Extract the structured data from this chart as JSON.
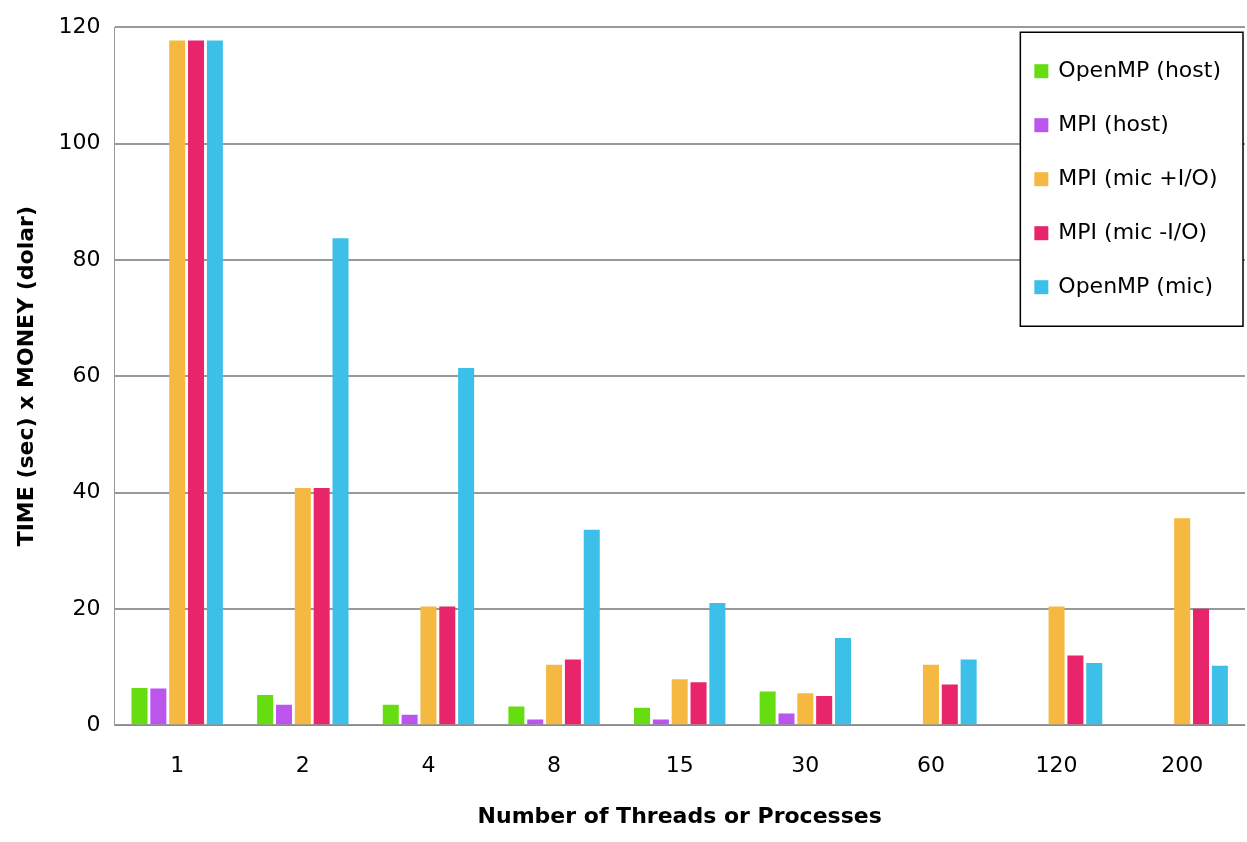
{
  "chart_data": {
    "type": "bar",
    "xlabel": "Number of Threads or Processes",
    "ylabel": "TIME (sec) x MONEY (dolar)",
    "categories": [
      "1",
      "2",
      "4",
      "8",
      "15",
      "30",
      "60",
      "120",
      "200"
    ],
    "series": [
      {
        "name": "OpenMP (host)",
        "color": "#66dd11",
        "values": [
          6.4,
          5.2,
          3.5,
          3.2,
          3,
          5.8,
          null,
          null,
          null
        ]
      },
      {
        "name": "MPI (host)",
        "color": "#bb55ee",
        "values": [
          6.3,
          3.5,
          1.8,
          1,
          1,
          2,
          null,
          null,
          null
        ]
      },
      {
        "name": "MPI (mic +I/O)",
        "color": "#f5b942",
        "values": [
          117.7,
          40.8,
          20.4,
          10.4,
          7.9,
          5.5,
          10.4,
          20.4,
          35.6
        ]
      },
      {
        "name": "MPI (mic -I/O)",
        "color": "#e8246a",
        "values": [
          117.7,
          40.8,
          20.4,
          11.3,
          7.4,
          5,
          7,
          12,
          20
        ]
      },
      {
        "name": "OpenMP (mic)",
        "color": "#3cc0ea",
        "values": [
          117.7,
          83.7,
          61.4,
          33.6,
          21,
          15,
          11.3,
          10.7,
          10.2
        ]
      }
    ],
    "ylim": [
      0,
      120
    ],
    "yticks": [
      0,
      20,
      40,
      60,
      80,
      100,
      120
    ],
    "grid": "y",
    "legend": "top right"
  }
}
